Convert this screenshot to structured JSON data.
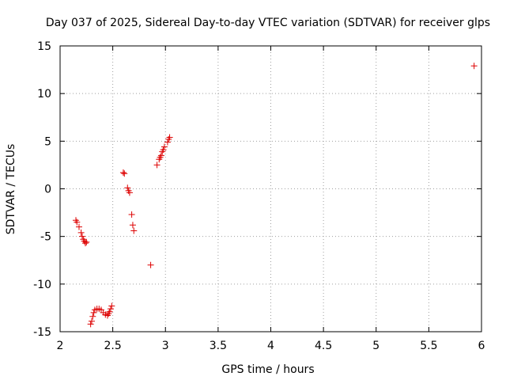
{
  "chart_data": {
    "type": "scatter",
    "title": "Day 037 of 2025, Sidereal Day-to-day VTEC variation (SDTVAR) for receiver glps",
    "xlabel": "GPS time / hours",
    "ylabel": "SDTVAR / TECUs",
    "xlim": [
      2,
      6
    ],
    "ylim": [
      -15,
      15
    ],
    "x_ticks": [
      2,
      2.5,
      3,
      3.5,
      4,
      4.5,
      5,
      5.5,
      6
    ],
    "x_tick_labels": [
      "2",
      "2.5",
      "3",
      "3.5",
      "4",
      "4.5",
      "5",
      "5.5",
      "6"
    ],
    "y_ticks": [
      -15,
      -10,
      -5,
      0,
      5,
      10,
      15
    ],
    "y_tick_labels": [
      "-15",
      "-10",
      "-5",
      "0",
      "5",
      "10",
      "15"
    ],
    "grid": true,
    "marker": "+",
    "series": [
      {
        "name": "SDTVAR",
        "color": "#dd0000",
        "points": [
          [
            2.15,
            -3.3
          ],
          [
            2.16,
            -3.5
          ],
          [
            2.18,
            -4.0
          ],
          [
            2.2,
            -4.6
          ],
          [
            2.21,
            -5.0
          ],
          [
            2.22,
            -5.3
          ],
          [
            2.23,
            -5.5
          ],
          [
            2.24,
            -5.7
          ],
          [
            2.25,
            -5.6
          ],
          [
            2.29,
            -14.2
          ],
          [
            2.3,
            -13.9
          ],
          [
            2.31,
            -13.4
          ],
          [
            2.32,
            -13.0
          ],
          [
            2.33,
            -12.7
          ],
          [
            2.35,
            -12.6
          ],
          [
            2.37,
            -12.6
          ],
          [
            2.39,
            -12.7
          ],
          [
            2.41,
            -13.0
          ],
          [
            2.43,
            -13.2
          ],
          [
            2.45,
            -13.3
          ],
          [
            2.46,
            -13.1
          ],
          [
            2.47,
            -12.9
          ],
          [
            2.48,
            -12.6
          ],
          [
            2.49,
            -12.3
          ],
          [
            2.6,
            1.7
          ],
          [
            2.61,
            1.6
          ],
          [
            2.64,
            0.1
          ],
          [
            2.65,
            -0.2
          ],
          [
            2.66,
            -0.4
          ],
          [
            2.68,
            -2.7
          ],
          [
            2.69,
            -3.8
          ],
          [
            2.7,
            -4.4
          ],
          [
            2.86,
            -8.0
          ],
          [
            2.92,
            2.5
          ],
          [
            2.94,
            3.1
          ],
          [
            2.95,
            3.3
          ],
          [
            2.96,
            3.5
          ],
          [
            2.97,
            3.9
          ],
          [
            2.98,
            4.1
          ],
          [
            2.99,
            4.4
          ],
          [
            3.02,
            4.9
          ],
          [
            3.03,
            5.2
          ],
          [
            3.04,
            5.4
          ],
          [
            5.93,
            12.9
          ]
        ]
      }
    ]
  }
}
